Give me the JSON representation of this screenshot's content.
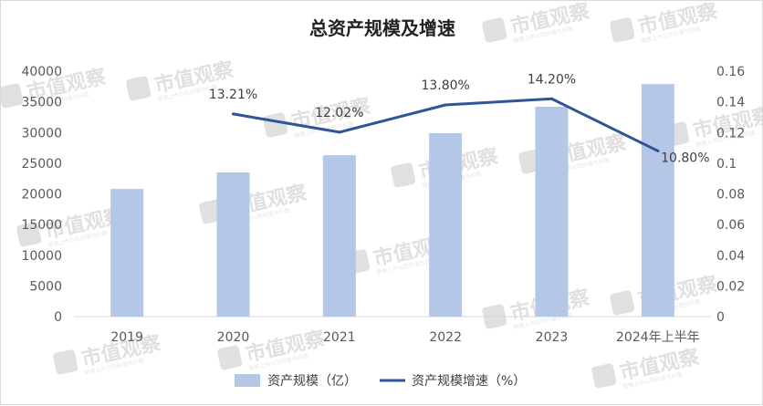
{
  "watermark": {
    "text": "市值观察",
    "subtext": "聚焦上市公司价值与价值"
  },
  "chart_data": {
    "type": "bar+line",
    "title": "总资产规模及增速",
    "categories": [
      "2019",
      "2020",
      "2021",
      "2022",
      "2023",
      "2024年上半年"
    ],
    "series": [
      {
        "name": "资产规模（亿）",
        "type": "bar",
        "axis": "left",
        "color": "#b4c7e7",
        "values": [
          20800,
          23500,
          26300,
          29900,
          34200,
          37900
        ]
      },
      {
        "name": "资产规模增速（%）",
        "type": "line",
        "axis": "right",
        "color": "#2f5597",
        "values": [
          null,
          0.1321,
          0.1202,
          0.138,
          0.142,
          0.108
        ]
      }
    ],
    "data_labels": [
      "",
      "13.21%",
      "12.02%",
      "13.80%",
      "14.20%",
      "10.80%"
    ],
    "y_left": {
      "min": 0,
      "max": 40000,
      "ticks": [
        "0",
        "5000",
        "10000",
        "15000",
        "20000",
        "25000",
        "30000",
        "35000",
        "40000"
      ]
    },
    "y_right": {
      "min": 0,
      "max": 0.16,
      "ticks": [
        "0",
        "0.02",
        "0.04",
        "0.06",
        "0.08",
        "0.1",
        "0.12",
        "0.14",
        "0.16"
      ]
    },
    "grid": false,
    "legend_position": "bottom"
  }
}
